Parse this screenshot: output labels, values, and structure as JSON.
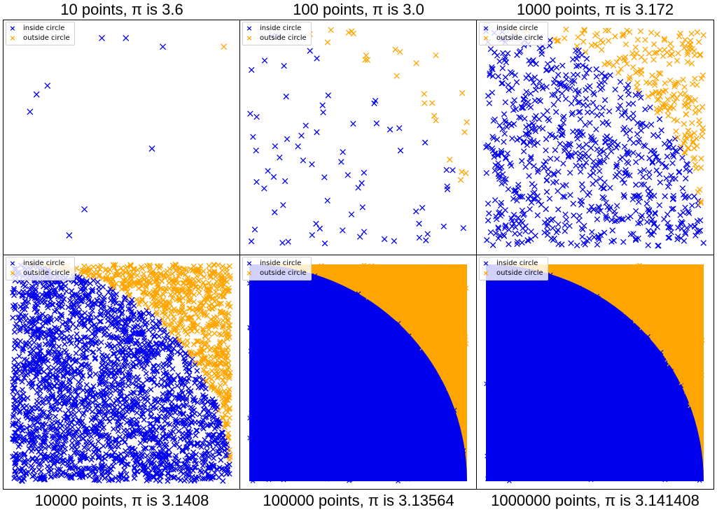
{
  "colors": {
    "inside": "#0000ee",
    "outside": "#ffa500"
  },
  "legend": {
    "inside_label": "inside circle",
    "outside_label": "outside circle",
    "marker": "x"
  },
  "panels": [
    {
      "title": "10 points, π is 3.6"
    },
    {
      "title": "100 points, π is 3.0"
    },
    {
      "title": "1000 points, π is 3.172"
    },
    {
      "title": "10000 points, π is 3.1408"
    },
    {
      "title": "100000 points, π is 3.13564"
    },
    {
      "title": "1000000 points, π is 3.141408"
    }
  ],
  "chart_data": [
    {
      "type": "scatter",
      "title": "10 points, π is 3.6",
      "n_points": 10,
      "pi_estimate": 3.6,
      "xlim": [
        0,
        1
      ],
      "ylim": [
        0,
        1
      ],
      "series": [
        {
          "name": "inside circle",
          "color": "#0000ee",
          "x": [
            0.11,
            0.16,
            0.41,
            0.52,
            0.69,
            0.64,
            0.33,
            0.26,
            0.08
          ],
          "y": [
            0.7,
            0.74,
            0.96,
            0.96,
            0.92,
            0.45,
            0.17,
            0.05,
            0.62
          ]
        },
        {
          "name": "outside circle",
          "color": "#ffa500",
          "x": [
            0.97
          ],
          "y": [
            0.92
          ]
        }
      ]
    },
    {
      "type": "scatter",
      "title": "100 points, π is 3.0",
      "n_points": 100,
      "pi_estimate": 3.0,
      "xlim": [
        0,
        1
      ],
      "ylim": [
        0,
        1
      ],
      "series": [
        {
          "name": "inside circle",
          "color": "#0000ee"
        },
        {
          "name": "outside circle",
          "color": "#ffa500"
        }
      ]
    },
    {
      "type": "scatter",
      "title": "1000 points, π is 3.172",
      "n_points": 1000,
      "pi_estimate": 3.172,
      "xlim": [
        0,
        1
      ],
      "ylim": [
        0,
        1
      ],
      "series": [
        {
          "name": "inside circle",
          "color": "#0000ee"
        },
        {
          "name": "outside circle",
          "color": "#ffa500"
        }
      ]
    },
    {
      "type": "scatter",
      "title": "10000 points, π is 3.1408",
      "n_points": 10000,
      "pi_estimate": 3.1408,
      "xlim": [
        0,
        1
      ],
      "ylim": [
        0,
        1
      ],
      "series": [
        {
          "name": "inside circle",
          "color": "#0000ee"
        },
        {
          "name": "outside circle",
          "color": "#ffa500"
        }
      ]
    },
    {
      "type": "scatter",
      "title": "100000 points, π is 3.13564",
      "n_points": 100000,
      "pi_estimate": 3.13564,
      "xlim": [
        0,
        1
      ],
      "ylim": [
        0,
        1
      ],
      "series": [
        {
          "name": "inside circle",
          "color": "#0000ee"
        },
        {
          "name": "outside circle",
          "color": "#ffa500"
        }
      ]
    },
    {
      "type": "scatter",
      "title": "1000000 points, π is 3.141408",
      "n_points": 1000000,
      "pi_estimate": 3.141408,
      "xlim": [
        0,
        1
      ],
      "ylim": [
        0,
        1
      ],
      "series": [
        {
          "name": "inside circle",
          "color": "#0000ee"
        },
        {
          "name": "outside circle",
          "color": "#ffa500"
        }
      ]
    }
  ]
}
